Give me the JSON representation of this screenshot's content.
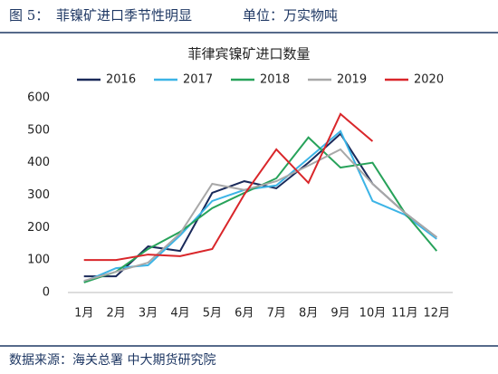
{
  "header": {
    "label": "图 5：",
    "title": "菲镍矿进口季节性明显",
    "unit": "单位：万实物吨"
  },
  "footer": {
    "text": "数据来源：海关总署 中大期货研究院"
  },
  "chart_data": {
    "type": "line",
    "title": "菲律宾镍矿进口数量",
    "categories": [
      "1月",
      "2月",
      "3月",
      "4月",
      "5月",
      "6月",
      "7月",
      "8月",
      "9月",
      "10月",
      "11月",
      "12月"
    ],
    "series": [
      {
        "name": "2016",
        "color": "#1a2a5a",
        "values": [
          50,
          50,
          142,
          128,
          307,
          343,
          321,
          400,
          489,
          335,
          246,
          170
        ]
      },
      {
        "name": "2017",
        "color": "#3cb4e6",
        "values": [
          33,
          75,
          84,
          176,
          282,
          316,
          330,
          413,
          497,
          282,
          240,
          165
        ]
      },
      {
        "name": "2018",
        "color": "#27a25a",
        "values": [
          31,
          64,
          134,
          187,
          260,
          307,
          352,
          478,
          385,
          400,
          246,
          128
        ]
      },
      {
        "name": "2019",
        "color": "#a8a8a8",
        "values": [
          36,
          64,
          92,
          182,
          335,
          316,
          343,
          391,
          441,
          335,
          246,
          170
        ]
      },
      {
        "name": "2020",
        "color": "#d9262a",
        "values": [
          100,
          100,
          117,
          112,
          134,
          302,
          441,
          338,
          550,
          466,
          null,
          null
        ]
      }
    ],
    "ylim": [
      0,
      600
    ],
    "yticks": [
      0,
      100,
      200,
      300,
      400,
      500,
      600
    ],
    "legend": "top"
  }
}
